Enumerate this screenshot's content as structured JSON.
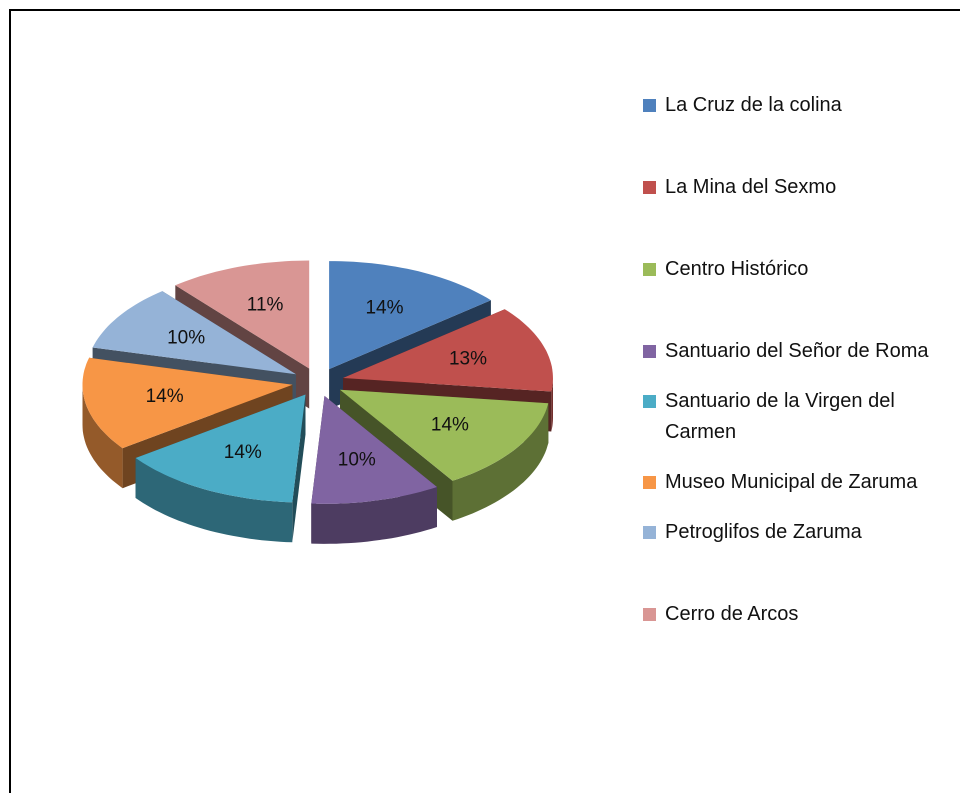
{
  "chart_data": {
    "type": "pie3d",
    "series": [
      {
        "name": "La Cruz de la colina",
        "color": "#4f81bd"
      },
      {
        "name": "La Mina del Sexmo",
        "color": "#c0504d"
      },
      {
        "name": "Centro Histórico",
        "color": "#9bbb59"
      },
      {
        "name": "Santuario del Señor de Roma",
        "color": "#8064a2"
      },
      {
        "name": "Santuario de la Virgen del Carmen",
        "color": "#4bacc6"
      },
      {
        "name": "Museo Municipal de Zaruma",
        "color": "#f79646"
      },
      {
        "name": "Petroglifos de Zaruma",
        "color": "#95b3d7"
      },
      {
        "name": "Cerro de Arcos",
        "color": "#d99694"
      }
    ],
    "values": [
      14,
      13,
      14,
      10,
      14,
      14,
      10,
      11
    ],
    "value_labels": [
      "14%",
      "13%",
      "14%",
      "10%",
      "14%",
      "14%",
      "10%",
      "11%"
    ],
    "legend": "right"
  }
}
